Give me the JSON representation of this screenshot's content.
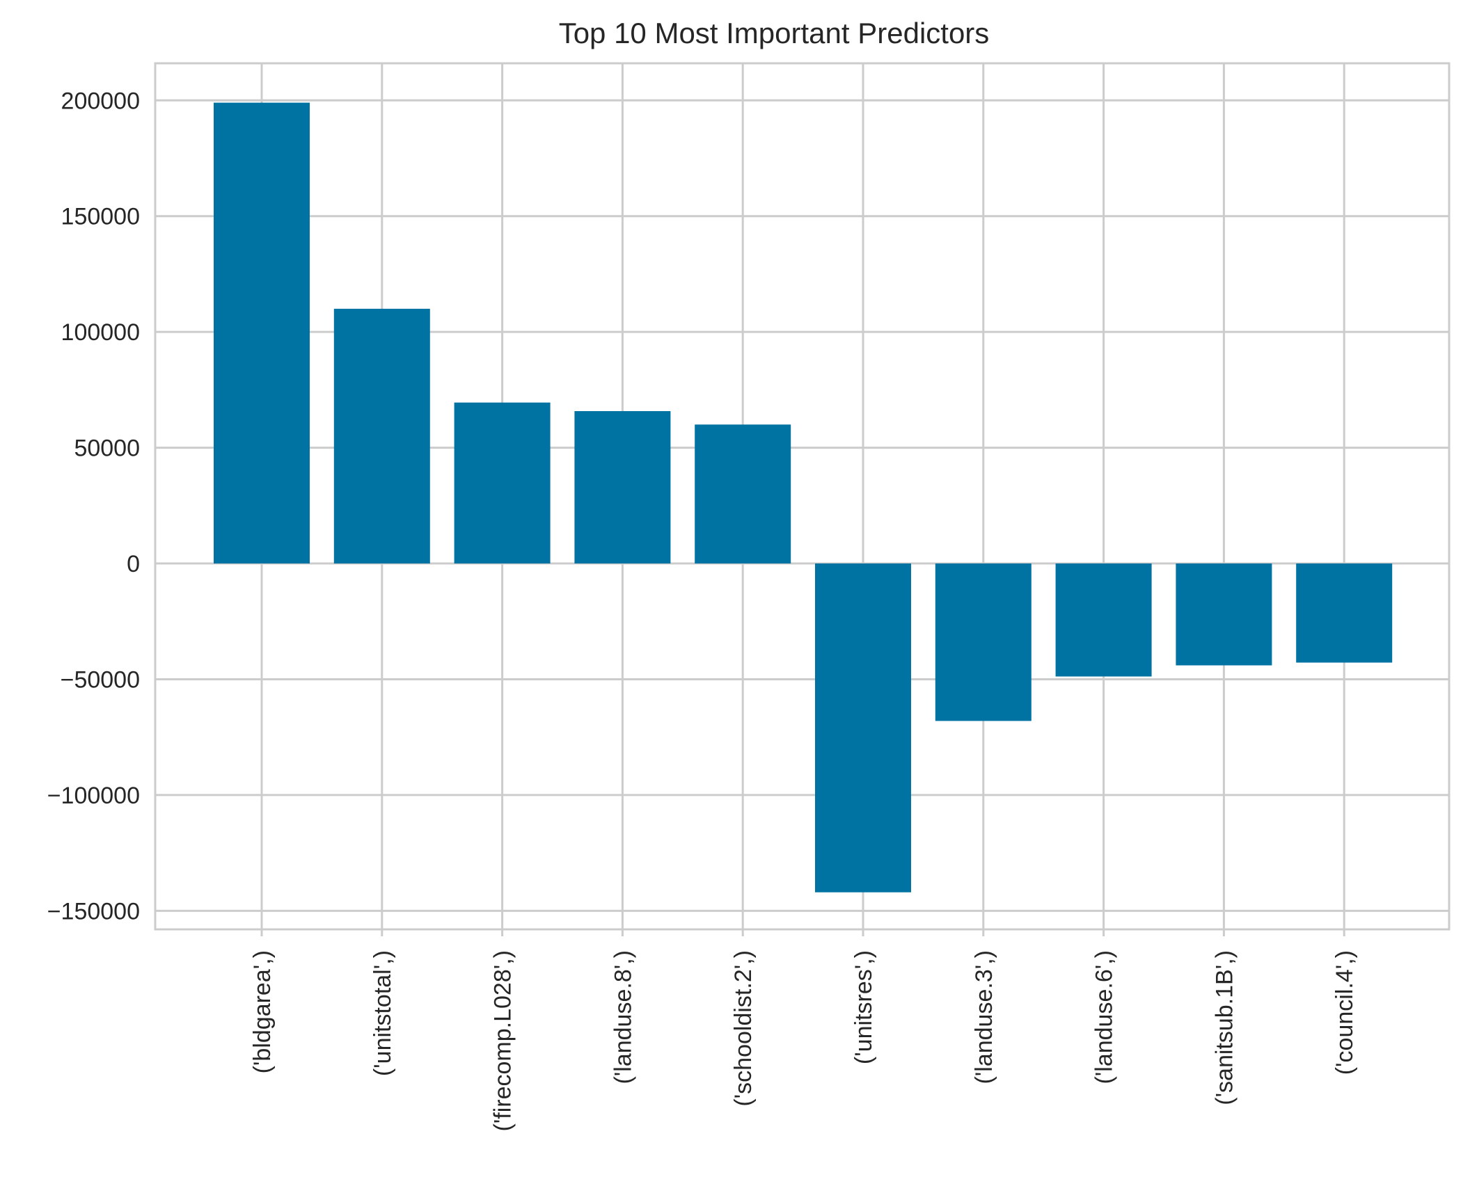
{
  "chart_data": {
    "type": "bar",
    "title": "Top 10 Most Important Predictors",
    "xlabel": "",
    "ylabel": "",
    "categories": [
      "('bldgarea',)",
      "('unitstotal',)",
      "('firecomp.L028',)",
      "('landuse.8',)",
      "('schooldist.2',)",
      "('unitsres',)",
      "('landuse.3',)",
      "('landuse.6',)",
      "('sanitsub.1B',)",
      "('council.4',)"
    ],
    "values": [
      199000,
      110000,
      69500,
      65800,
      60000,
      -142000,
      -68000,
      -48800,
      -44000,
      -42800
    ],
    "ylim": [
      -158000,
      216000
    ],
    "yticks": [
      200000,
      150000,
      100000,
      50000,
      0,
      -50000,
      -100000,
      -150000
    ],
    "ytick_labels": [
      "200000",
      "150000",
      "100000",
      "50000",
      "0",
      "−50000",
      "−100000",
      "−150000"
    ],
    "grid": true,
    "legend": "none",
    "colors": {
      "bar": "#0173a3",
      "grid": "#cccccc",
      "frame": "#cccccc",
      "text": "#262626"
    }
  }
}
